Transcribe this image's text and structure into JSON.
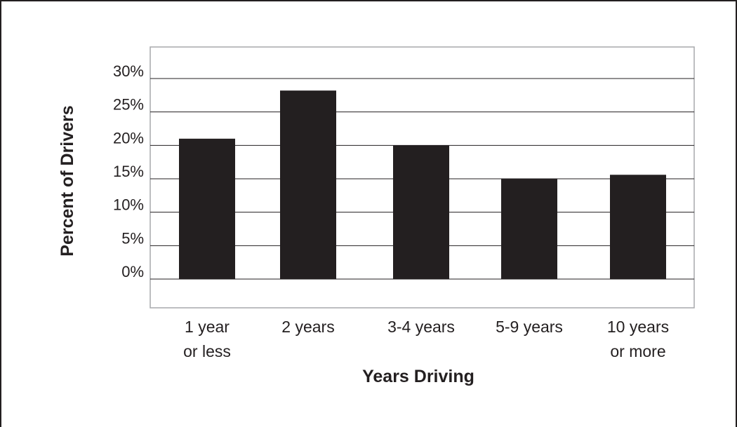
{
  "chart_data": {
    "type": "bar",
    "categories": [
      [
        "1 year",
        "or less"
      ],
      [
        "2 years"
      ],
      [
        "3-4 years"
      ],
      [
        "5-9 years"
      ],
      [
        "10 years",
        "or more"
      ]
    ],
    "values": [
      21,
      28.2,
      20,
      15,
      15.6
    ],
    "ylim": [
      0,
      30
    ],
    "yticks": [
      0,
      5,
      10,
      15,
      20,
      25,
      30
    ],
    "ytick_labels": [
      "0%",
      "5%",
      "10%",
      "15%",
      "20%",
      "25%",
      "30%"
    ],
    "xlabel": "Years Driving",
    "ylabel": "Percent of Drivers",
    "bar_color": "#231f20",
    "grid": true,
    "legend": "none"
  }
}
